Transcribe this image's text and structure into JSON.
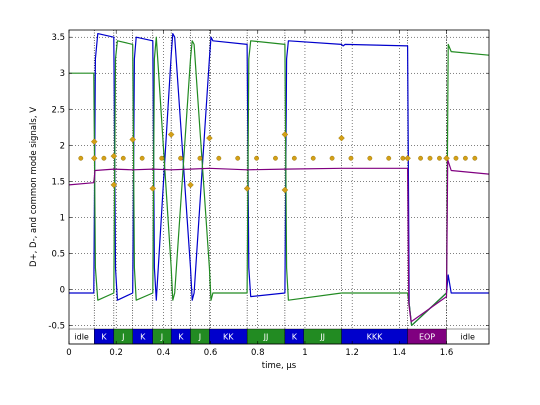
{
  "chart_data": {
    "type": "line",
    "xlabel": "time, µs",
    "ylabel": "D+, D-, and common mode signals, V",
    "xlim": [
      0,
      1.78
    ],
    "ylim": [
      -0.55,
      3.6
    ],
    "xticks": [
      0,
      0.2,
      0.4,
      0.6,
      0.8,
      1,
      1.2,
      1.4,
      1.6
    ],
    "xtick_labels": [
      "0",
      "0.2",
      "0.4",
      "0.6",
      "0.8",
      "1",
      "1.2",
      "1.4",
      "1.6"
    ],
    "yticks": [
      -0.5,
      0,
      0.5,
      1,
      1.5,
      2,
      2.5,
      3,
      3.5
    ],
    "ytick_labels": [
      "-0.5",
      "0",
      "0.5",
      "1",
      "1.5",
      "2",
      "2.5",
      "3",
      "3.5"
    ],
    "grid": true,
    "vertical_markers": [
      0.107,
      0.19,
      0.27,
      0.355,
      0.433,
      0.515,
      0.595,
      0.755,
      0.915,
      1.155,
      1.435,
      1.6
    ],
    "series": [
      {
        "color": "#0000cc",
        "x": [
          0,
          0.105,
          0.112,
          0.122,
          0.19,
          0.197,
          0.205,
          0.27,
          0.277,
          0.285,
          0.355,
          0.362,
          0.37,
          0.433,
          0.44,
          0.448,
          0.515,
          0.522,
          0.53,
          0.595,
          0.602,
          0.61,
          0.755,
          0.762,
          0.77,
          0.915,
          0.922,
          0.93,
          1.155,
          1.162,
          1.17,
          1.435,
          1.442,
          1.452,
          1.6,
          1.607,
          1.62,
          1.78
        ],
        "y": [
          -0.05,
          -0.05,
          3.2,
          3.55,
          3.5,
          0.3,
          -0.15,
          -0.05,
          3.2,
          3.5,
          3.45,
          0.3,
          -0.15,
          3.25,
          3.55,
          3.5,
          0.3,
          -0.15,
          -0.05,
          3.2,
          3.5,
          3.45,
          3.4,
          0.3,
          -0.1,
          -0.05,
          3.2,
          3.45,
          3.4,
          3.38,
          3.4,
          3.38,
          -0.2,
          -0.5,
          -0.05,
          0.2,
          -0.05,
          -0.05
        ]
      },
      {
        "color": "#228b22",
        "x": [
          0,
          0.105,
          0.112,
          0.122,
          0.19,
          0.197,
          0.205,
          0.27,
          0.277,
          0.285,
          0.355,
          0.362,
          0.37,
          0.433,
          0.44,
          0.448,
          0.515,
          0.522,
          0.53,
          0.595,
          0.602,
          0.61,
          0.755,
          0.762,
          0.77,
          0.915,
          0.922,
          0.93,
          1.155,
          1.162,
          1.17,
          1.435,
          1.442,
          1.452,
          1.6,
          1.607,
          1.62,
          1.78
        ],
        "y": [
          3.0,
          3.0,
          0.3,
          -0.15,
          -0.05,
          3.2,
          3.45,
          3.4,
          0.3,
          -0.15,
          -0.05,
          3.2,
          3.5,
          0.3,
          -0.15,
          -0.05,
          3.2,
          3.45,
          3.4,
          0.3,
          -0.15,
          -0.05,
          -0.05,
          3.2,
          3.45,
          3.4,
          0.3,
          -0.15,
          -0.05,
          -0.05,
          -0.05,
          -0.05,
          -0.2,
          -0.5,
          -0.05,
          3.4,
          3.3,
          3.25
        ]
      },
      {
        "color": "#800080",
        "x": [
          0,
          0.105,
          0.11,
          0.19,
          0.27,
          0.355,
          0.433,
          0.515,
          0.595,
          0.755,
          0.915,
          1.155,
          1.435,
          1.44,
          1.45,
          1.6,
          1.605,
          1.62,
          1.78
        ],
        "y": [
          1.45,
          1.48,
          1.65,
          1.67,
          1.66,
          1.67,
          1.66,
          1.67,
          1.68,
          1.66,
          1.67,
          1.68,
          1.68,
          -0.2,
          -0.45,
          -0.1,
          1.8,
          1.65,
          1.6
        ]
      }
    ],
    "markers_dots": {
      "color": "#d4a017",
      "x": [
        0.05,
        0.148,
        0.23,
        0.31,
        0.393,
        0.473,
        0.555,
        0.635,
        0.715,
        0.795,
        0.875,
        0.955,
        1.035,
        1.115,
        1.195,
        1.275,
        1.355,
        1.415,
        1.49,
        1.53,
        1.57,
        1.64,
        1.68,
        1.72
      ],
      "y": [
        1.82,
        1.82,
        1.82,
        1.82,
        1.82,
        1.82,
        1.82,
        1.82,
        1.82,
        1.82,
        1.82,
        1.82,
        1.82,
        1.82,
        1.82,
        1.82,
        1.82,
        1.82,
        1.82,
        1.82,
        1.82,
        1.82,
        1.82,
        1.82
      ]
    },
    "markers_diamonds": {
      "color": "#d4a017",
      "x": [
        0.107,
        0.107,
        0.19,
        0.19,
        0.27,
        0.355,
        0.433,
        0.515,
        0.595,
        0.755,
        0.915,
        0.915,
        1.155,
        1.435,
        1.6
      ],
      "y": [
        2.05,
        1.82,
        1.45,
        1.85,
        2.08,
        1.4,
        2.15,
        1.45,
        2.1,
        1.4,
        2.15,
        1.38,
        2.1,
        1.82,
        1.82
      ]
    },
    "state_bar": [
      {
        "label": "idle",
        "from": 0.0,
        "to": 0.107,
        "bg": "#ffffff",
        "fg": "#000000"
      },
      {
        "label": "K",
        "from": 0.107,
        "to": 0.19,
        "bg": "#0000cc",
        "fg": "#ffffff"
      },
      {
        "label": "J",
        "from": 0.19,
        "to": 0.27,
        "bg": "#228b22",
        "fg": "#ffffff"
      },
      {
        "label": "K",
        "from": 0.27,
        "to": 0.355,
        "bg": "#0000cc",
        "fg": "#ffffff"
      },
      {
        "label": "J",
        "from": 0.355,
        "to": 0.433,
        "bg": "#228b22",
        "fg": "#ffffff"
      },
      {
        "label": "K",
        "from": 0.433,
        "to": 0.515,
        "bg": "#0000cc",
        "fg": "#ffffff"
      },
      {
        "label": "J",
        "from": 0.515,
        "to": 0.595,
        "bg": "#228b22",
        "fg": "#ffffff"
      },
      {
        "label": "KK",
        "from": 0.595,
        "to": 0.755,
        "bg": "#0000cc",
        "fg": "#ffffff"
      },
      {
        "label": "JJ",
        "from": 0.755,
        "to": 0.915,
        "bg": "#228b22",
        "fg": "#ffffff"
      },
      {
        "label": "K",
        "from": 0.915,
        "to": 0.995,
        "bg": "#0000cc",
        "fg": "#ffffff"
      },
      {
        "label": "JJ",
        "from": 0.995,
        "to": 1.155,
        "bg": "#228b22",
        "fg": "#ffffff"
      },
      {
        "label": "KKK",
        "from": 1.155,
        "to": 1.435,
        "bg": "#0000cc",
        "fg": "#ffffff"
      },
      {
        "label": "EOP",
        "from": 1.435,
        "to": 1.6,
        "bg": "#800080",
        "fg": "#ffffff"
      },
      {
        "label": "idle",
        "from": 1.6,
        "to": 1.78,
        "bg": "#ffffff",
        "fg": "#000000"
      }
    ]
  }
}
